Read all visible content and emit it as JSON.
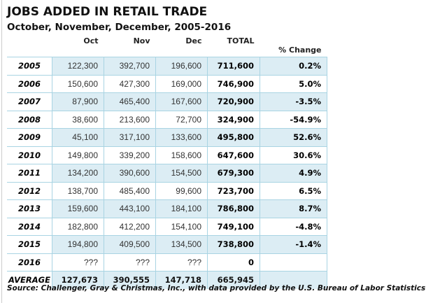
{
  "title": "JOBS ADDED IN RETAIL TRADE",
  "subtitle": "October, November, December, 2005-2016",
  "headers": [
    "",
    "Oct",
    "Nov",
    "Dec",
    "TOTAL",
    "% Change"
  ],
  "rows": [
    [
      "2005",
      "122,300",
      "392,700",
      "196,600",
      "711,600",
      "0.2%"
    ],
    [
      "2006",
      "150,600",
      "427,300",
      "169,000",
      "746,900",
      "5.0%"
    ],
    [
      "2007",
      "87,900",
      "465,400",
      "167,600",
      "720,900",
      "-3.5%"
    ],
    [
      "2008",
      "38,600",
      "213,600",
      "72,700",
      "324,900",
      "-54.9%"
    ],
    [
      "2009",
      "45,100",
      "317,100",
      "133,600",
      "495,800",
      "52.6%"
    ],
    [
      "2010",
      "149,800",
      "339,200",
      "158,600",
      "647,600",
      "30.6%"
    ],
    [
      "2011",
      "134,200",
      "390,600",
      "154,500",
      "679,300",
      "4.9%"
    ],
    [
      "2012",
      "138,700",
      "485,400",
      "99,600",
      "723,700",
      "6.5%"
    ],
    [
      "2013",
      "159,600",
      "443,100",
      "184,100",
      "786,800",
      "8.7%"
    ],
    [
      "2014",
      "182,800",
      "412,200",
      "154,100",
      "749,100",
      "-4.8%"
    ],
    [
      "2015",
      "194,800",
      "409,500",
      "134,500",
      "738,800",
      "-1.4%"
    ],
    [
      "2016",
      "???",
      "???",
      "???",
      "0",
      ""
    ],
    [
      "AVERAGE",
      "127,673",
      "390,555",
      "147,718",
      "665,945",
      ""
    ]
  ],
  "source": "Source: Challenger,  Gray & Christmas, Inc., with data provided by the U.S. Bureau of Labor Statistics"
}
